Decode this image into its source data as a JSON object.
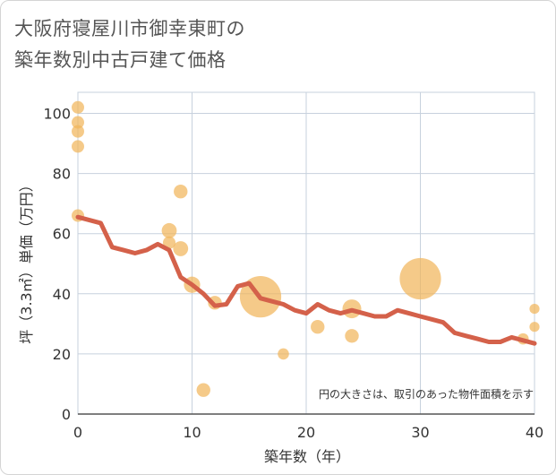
{
  "chart_data": {
    "type": "scatter",
    "title_lines": [
      "大阪府寝屋川市御幸東町の",
      "築年数別中古戸建て価格"
    ],
    "xlabel": "築年数（年）",
    "ylabel": "坪（3.3㎡）単価（万円）",
    "xlim": [
      0,
      40
    ],
    "ylim": [
      0,
      107
    ],
    "xticks": [
      0,
      10,
      20,
      30,
      40
    ],
    "yticks": [
      0,
      20,
      40,
      60,
      80,
      100
    ],
    "grid": true,
    "note": "円の大きさは、取引のあった物件面積を示す",
    "colors": {
      "bubble": "#f1b65c",
      "trend": "#d4614a",
      "grid": "#c7d1dd"
    },
    "scatter_points": [
      {
        "x": 0,
        "y": 102,
        "size": 1
      },
      {
        "x": 0,
        "y": 97,
        "size": 1
      },
      {
        "x": 0,
        "y": 94,
        "size": 1
      },
      {
        "x": 0,
        "y": 89,
        "size": 1
      },
      {
        "x": 0,
        "y": 66,
        "size": 1
      },
      {
        "x": 8,
        "y": 61,
        "size": 1.2
      },
      {
        "x": 8,
        "y": 57,
        "size": 1
      },
      {
        "x": 9,
        "y": 74,
        "size": 1.1
      },
      {
        "x": 9,
        "y": 55,
        "size": 1.2
      },
      {
        "x": 10,
        "y": 43,
        "size": 1.3
      },
      {
        "x": 11,
        "y": 8,
        "size": 1.1
      },
      {
        "x": 12,
        "y": 37,
        "size": 1.1
      },
      {
        "x": 16,
        "y": 39,
        "size": 3.3
      },
      {
        "x": 18,
        "y": 20,
        "size": 0.9
      },
      {
        "x": 21,
        "y": 29,
        "size": 1.1
      },
      {
        "x": 24,
        "y": 35,
        "size": 1.5
      },
      {
        "x": 24,
        "y": 26,
        "size": 1.1
      },
      {
        "x": 30,
        "y": 45,
        "size": 3.3
      },
      {
        "x": 39,
        "y": 25,
        "size": 0.9
      },
      {
        "x": 40,
        "y": 35,
        "size": 0.8
      },
      {
        "x": 40,
        "y": 29,
        "size": 0.8
      }
    ],
    "trend_line": {
      "x": [
        0,
        1,
        2,
        3,
        4,
        5,
        6,
        7,
        8,
        9,
        10,
        11,
        12,
        13,
        14,
        15,
        16,
        17,
        18,
        19,
        20,
        21,
        22,
        23,
        24,
        25,
        26,
        27,
        28,
        29,
        30,
        31,
        32,
        33,
        34,
        35,
        36,
        37,
        38,
        39,
        40
      ],
      "y": [
        65.5,
        64.5,
        63.5,
        55.5,
        54.5,
        53.5,
        54.5,
        56.5,
        54.5,
        45.5,
        43,
        40,
        36,
        36.5,
        42.5,
        43.5,
        38.5,
        37.5,
        36.5,
        34.5,
        33.5,
        36.5,
        34.5,
        33.5,
        34.5,
        33.5,
        32.5,
        32.5,
        34.5,
        33.5,
        32.5,
        31.5,
        30.5,
        27,
        26,
        25,
        24,
        24,
        25.5,
        24.5,
        23.5
      ]
    }
  }
}
